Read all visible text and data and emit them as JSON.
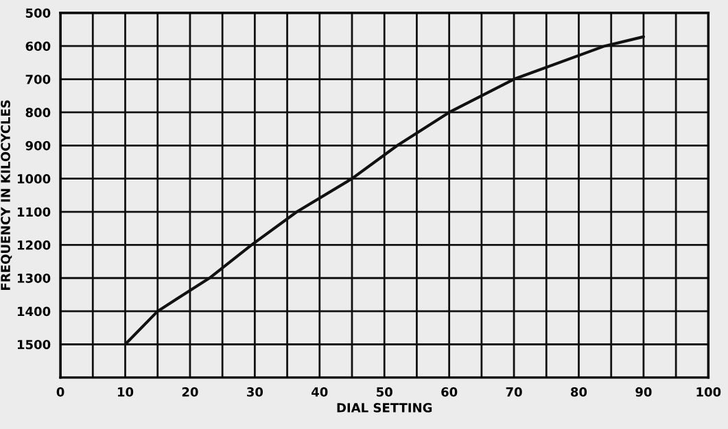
{
  "chart_data": {
    "type": "line",
    "xlabel": "DIAL SETTING",
    "ylabel": "FREQUENCY IN KILOCYCLES",
    "x": [
      10,
      15,
      23,
      29.5,
      36.5,
      45,
      52,
      60,
      70,
      84,
      90
    ],
    "series": [
      {
        "color": "#111111",
        "values": [
          1500,
          1400,
          1300,
          1200,
          1100,
          1000,
          900,
          800,
          700,
          600,
          572
        ]
      }
    ],
    "xlim": [
      0,
      100
    ],
    "xticks": [
      0,
      {
        "value": 5,
        "label": null
      },
      10,
      {
        "value": 15,
        "label": null
      },
      20,
      {
        "value": 25,
        "label": null
      },
      30,
      {
        "value": 35,
        "label": null
      },
      40,
      {
        "value": 45,
        "label": null
      },
      50,
      {
        "value": 55,
        "label": null
      },
      60,
      {
        "value": 65,
        "label": null
      },
      70,
      {
        "value": 75,
        "label": null
      },
      80,
      {
        "value": 85,
        "label": null
      },
      90,
      {
        "value": 95,
        "label": null
      },
      100
    ],
    "ylim": [
      1600,
      500
    ],
    "yticks": [
      500,
      600,
      700,
      800,
      900,
      1000,
      1100,
      1200,
      1300,
      1400,
      1500
    ],
    "grid": true,
    "marker": "none",
    "line_style": "solid"
  }
}
